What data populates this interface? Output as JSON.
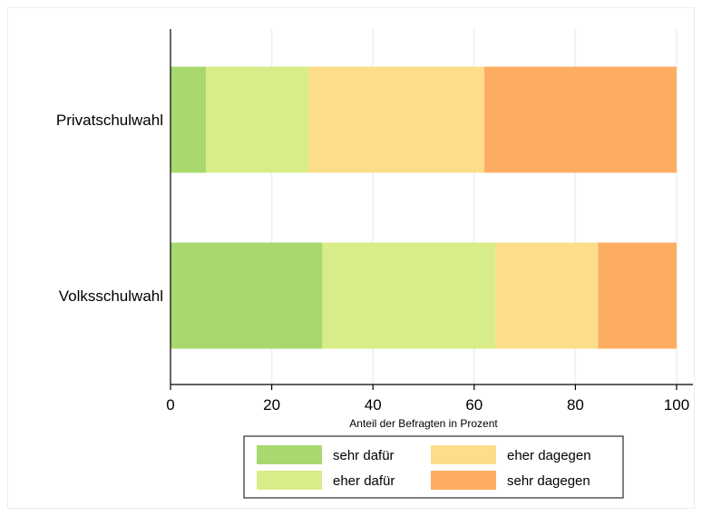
{
  "chart_data": {
    "type": "bar",
    "orientation": "horizontal",
    "stacked": true,
    "categories": [
      "Privatschulwahl",
      "Volksschulwahl"
    ],
    "series": [
      {
        "name": "sehr dafür",
        "color": "#a8d86e",
        "values": [
          7,
          30
        ]
      },
      {
        "name": "eher dafür",
        "color": "#d8ec8a",
        "values": [
          20.3,
          34.2
        ]
      },
      {
        "name": "eher dagegen",
        "color": "#fddd8b",
        "values": [
          34.7,
          20.3
        ]
      },
      {
        "name": "sehr dagegen",
        "color": "#fdad62",
        "values": [
          38,
          15.5
        ]
      }
    ],
    "xlabel": "Anteil der Befragten in Prozent",
    "xlim": [
      0,
      100
    ],
    "xticks": [
      "0",
      "20",
      "40",
      "60",
      "80",
      "100"
    ],
    "grid": "vertical",
    "legend": "bottom-center"
  }
}
